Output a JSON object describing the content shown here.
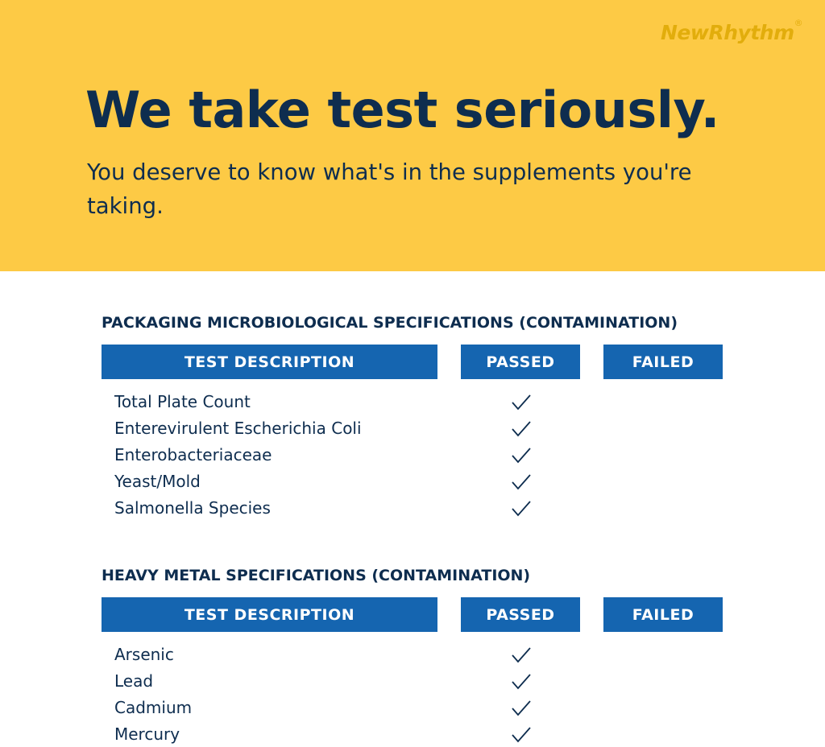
{
  "brand": {
    "logo": "NewRhythm",
    "registered": "®"
  },
  "hero": {
    "title": "We take test seriously.",
    "subtitle": "You deserve to know what's in the supplements you're taking."
  },
  "colors": {
    "hero_bg": "#fdca45",
    "header_bg": "#1565b0",
    "text": "#0e2d4f"
  },
  "sections": [
    {
      "title": "PACKAGING MICROBIOLOGICAL SPECIFICATIONS (CONTAMINATION)",
      "columns": [
        "TEST DESCRIPTION",
        "PASSED",
        "FAILED"
      ],
      "rows": [
        {
          "test": "Total Plate Count",
          "result": "passed"
        },
        {
          "test": "Enterevirulent Escherichia Coli",
          "result": "passed"
        },
        {
          "test": "Enterobacteriaceae",
          "result": "passed"
        },
        {
          "test": "Yeast/Mold",
          "result": "passed"
        },
        {
          "test": "Salmonella Species",
          "result": "passed"
        }
      ]
    },
    {
      "title": "HEAVY METAL SPECIFICATIONS (CONTAMINATION)",
      "columns": [
        "TEST DESCRIPTION",
        "PASSED",
        "FAILED"
      ],
      "rows": [
        {
          "test": "Arsenic",
          "result": "passed"
        },
        {
          "test": "Lead",
          "result": "passed"
        },
        {
          "test": "Cadmium",
          "result": "passed"
        },
        {
          "test": "Mercury",
          "result": "passed"
        }
      ]
    }
  ]
}
